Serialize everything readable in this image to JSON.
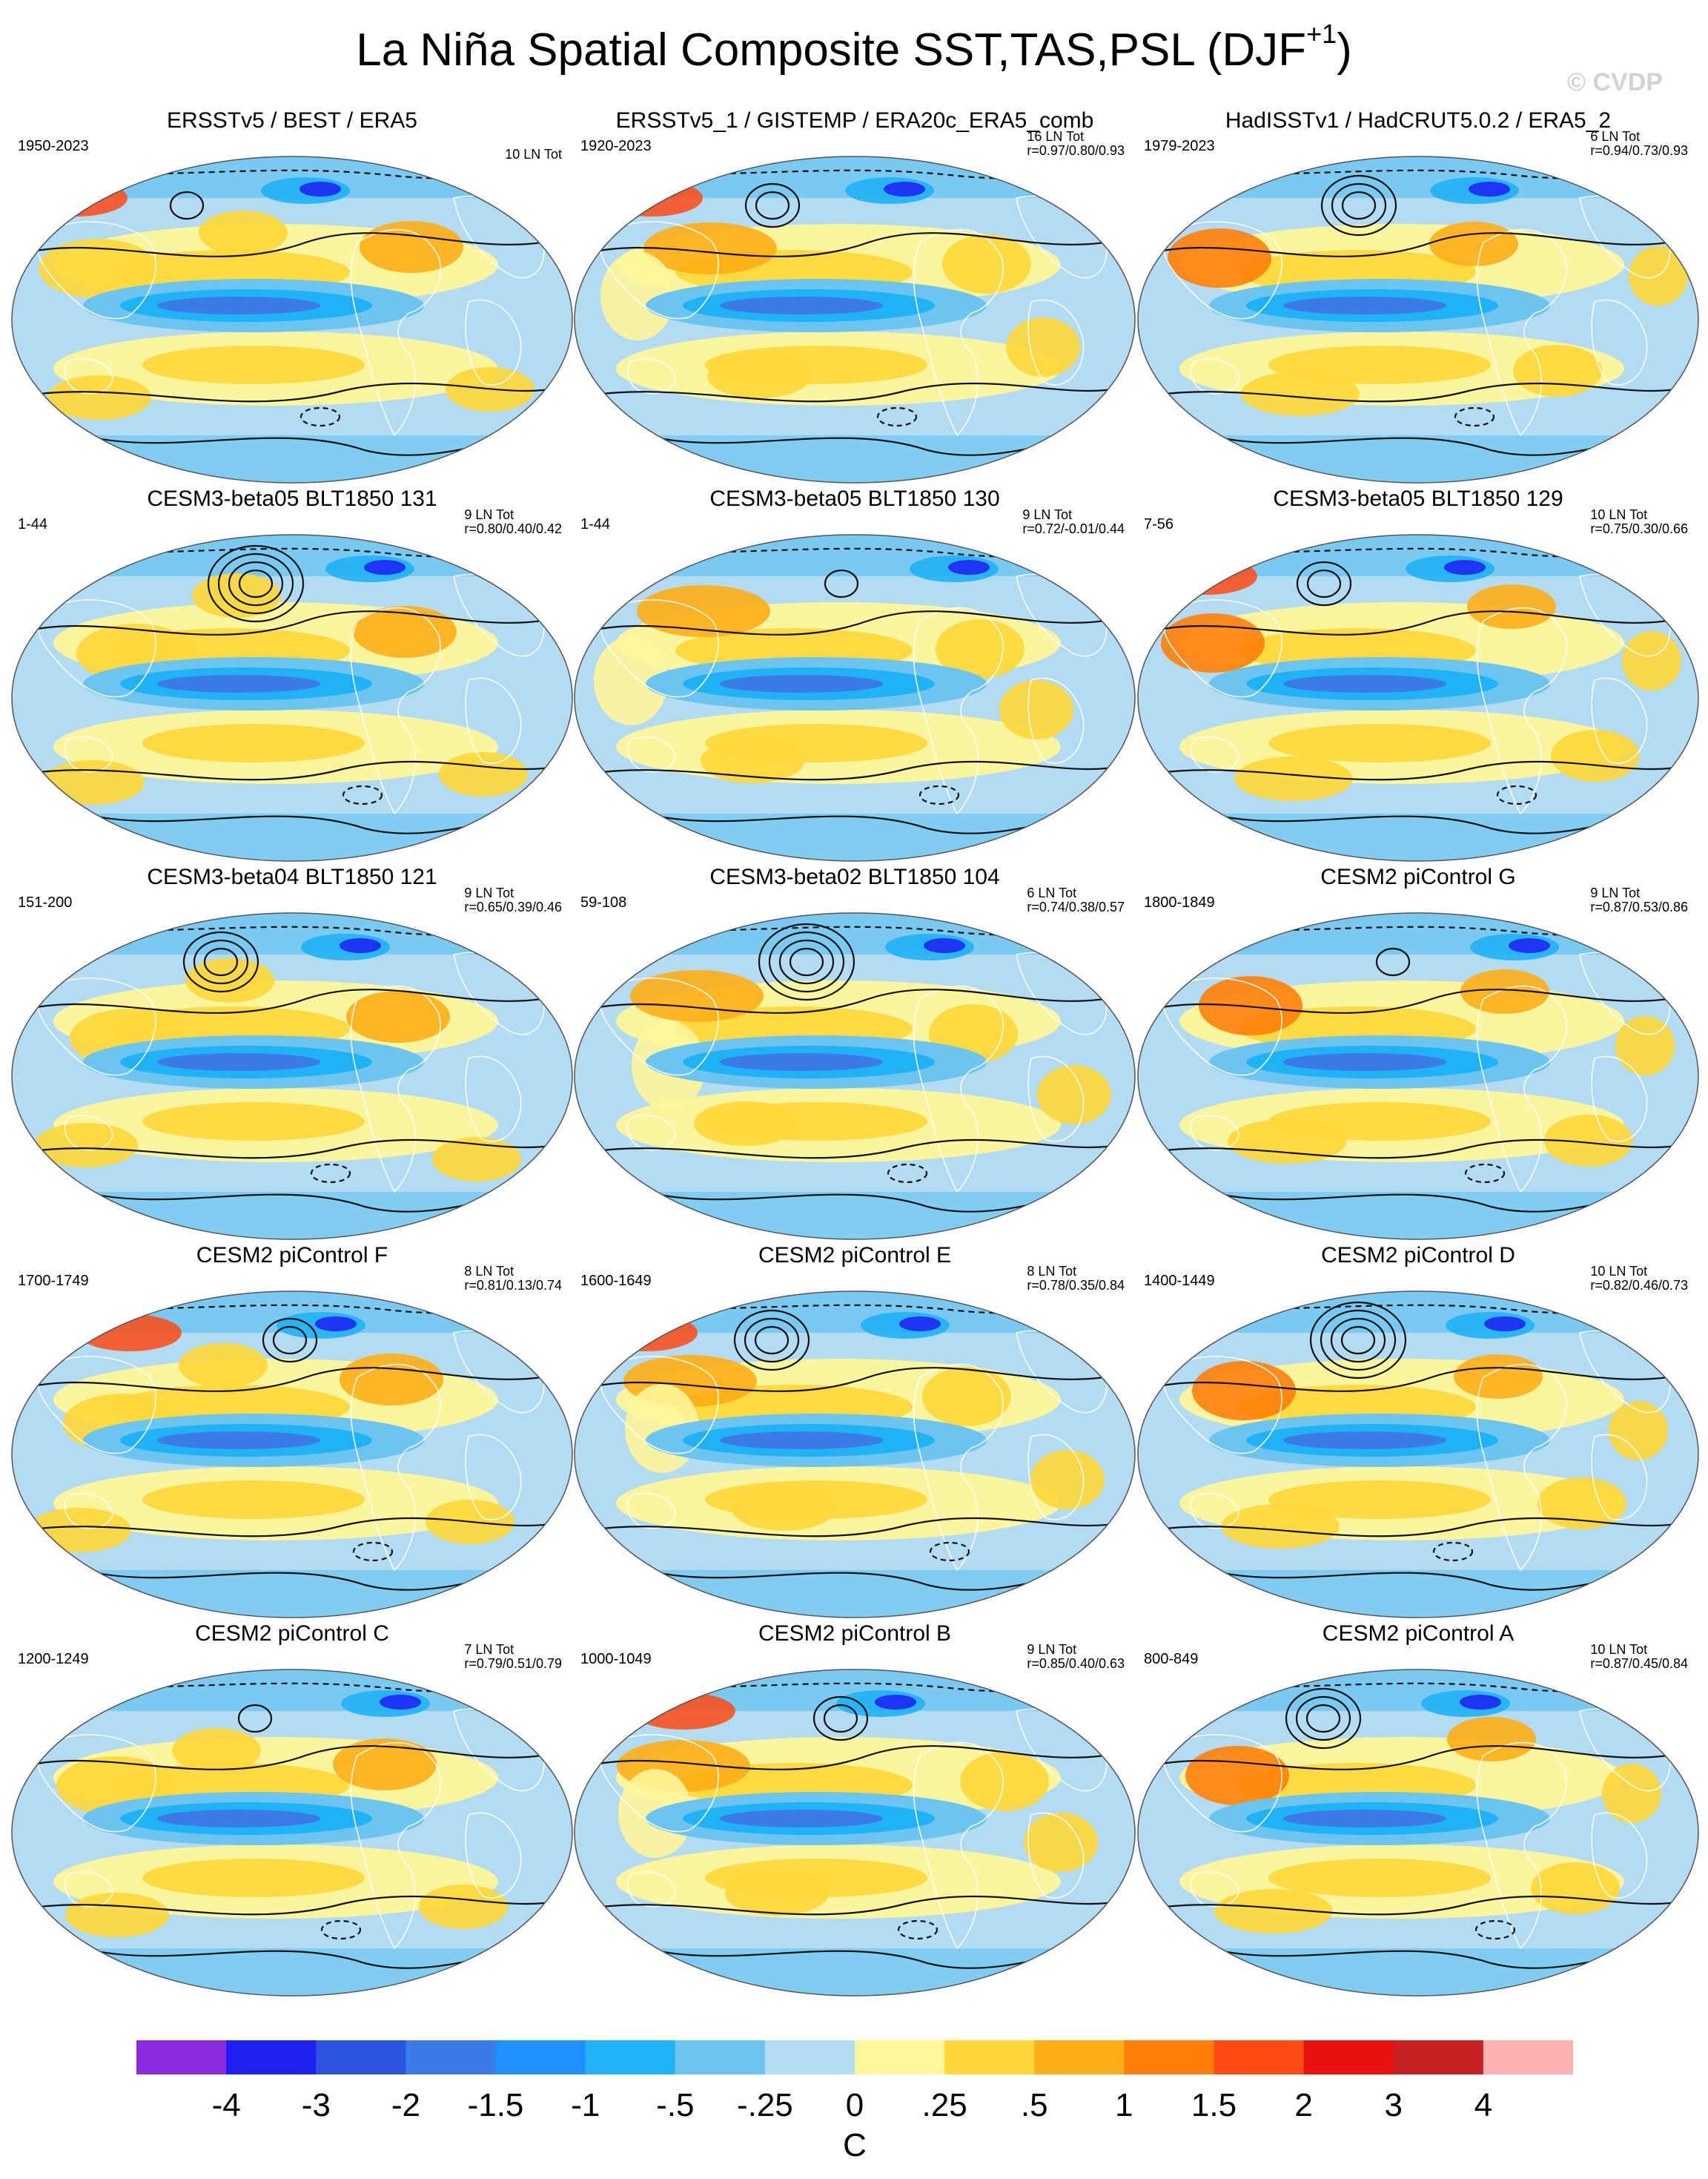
{
  "title_main": "La Niña Spatial Composite SST,TAS,PSL (DJF",
  "title_sup": "+1",
  "title_close": ")",
  "watermark": "© CVDP",
  "panels": [
    {
      "title": "ERSSTv5 / BEST / ERA5",
      "years": "1950-2023",
      "count": "10 LN Tot",
      "r": ""
    },
    {
      "title": "ERSSTv5_1 / GISTEMP / ERA20c_ERA5_comb",
      "years": "1920-2023",
      "count": "16 LN Tot",
      "r": "r=0.97/0.80/0.93"
    },
    {
      "title": "HadISSTv1 / HadCRUT5.0.2 / ERA5_2",
      "years": "1979-2023",
      "count": "6 LN Tot",
      "r": "r=0.94/0.73/0.93"
    },
    {
      "title": "CESM3-beta05 BLT1850 131",
      "years": "1-44",
      "count": "9 LN Tot",
      "r": "r=0.80/0.40/0.42"
    },
    {
      "title": "CESM3-beta05 BLT1850 130",
      "years": "1-44",
      "count": "9 LN Tot",
      "r": "r=0.72/-0.01/0.44"
    },
    {
      "title": "CESM3-beta05 BLT1850 129",
      "years": "7-56",
      "count": "10 LN Tot",
      "r": "r=0.75/0.30/0.66"
    },
    {
      "title": "CESM3-beta04 BLT1850 121",
      "years": "151-200",
      "count": "9 LN Tot",
      "r": "r=0.65/0.39/0.46"
    },
    {
      "title": "CESM3-beta02 BLT1850 104",
      "years": "59-108",
      "count": "6 LN Tot",
      "r": "r=0.74/0.38/0.57"
    },
    {
      "title": "CESM2 piControl G",
      "years": "1800-1849",
      "count": "9 LN Tot",
      "r": "r=0.87/0.53/0.86"
    },
    {
      "title": "CESM2 piControl F",
      "years": "1700-1749",
      "count": "8 LN Tot",
      "r": "r=0.81/0.13/0.74"
    },
    {
      "title": "CESM2 piControl E",
      "years": "1600-1649",
      "count": "8 LN Tot",
      "r": "r=0.78/0.35/0.84"
    },
    {
      "title": "CESM2 piControl D",
      "years": "1400-1449",
      "count": "10 LN Tot",
      "r": "r=0.82/0.46/0.73"
    },
    {
      "title": "CESM2 piControl C",
      "years": "1200-1249",
      "count": "7 LN Tot",
      "r": "r=0.79/0.51/0.79"
    },
    {
      "title": "CESM2 piControl B",
      "years": "1000-1049",
      "count": "9 LN Tot",
      "r": "r=0.85/0.40/0.63"
    },
    {
      "title": "CESM2 piControl A",
      "years": "800-849",
      "count": "10 LN Tot",
      "r": "r=0.87/0.45/0.84"
    }
  ],
  "colorbar": {
    "unit": "C",
    "labels": [
      "-4",
      "-3",
      "-2",
      "-1.5",
      "-1",
      "-.5",
      "-.25",
      "0",
      ".25",
      ".5",
      "1",
      "1.5",
      "2",
      "3",
      "4"
    ],
    "colors": [
      "#8a2be2",
      "#1f1ff0",
      "#2b55e0",
      "#3a7be6",
      "#1e90ff",
      "#20b2f5",
      "#6cc4f0",
      "#b3dcf3",
      "#fff59a",
      "#ffd738",
      "#ffae16",
      "#ff7f0a",
      "#ff4a14",
      "#e8120e",
      "#c82222",
      "#ffb0b0"
    ]
  },
  "palette": {
    "ocean_base": "#b3dcf3",
    "cold_core": "#3a7be6",
    "cold_mid": "#20b2f5",
    "cool": "#6cc4f0",
    "warm_light": "#fff59a",
    "warm": "#ffd738",
    "warm_strong": "#ffae16",
    "hot": "#ff7f0a",
    "hotter": "#ff4a14",
    "cold_deep": "#1f1ff0",
    "contour": "#111111",
    "coastline": "#ffffff",
    "rim": "#555555"
  }
}
